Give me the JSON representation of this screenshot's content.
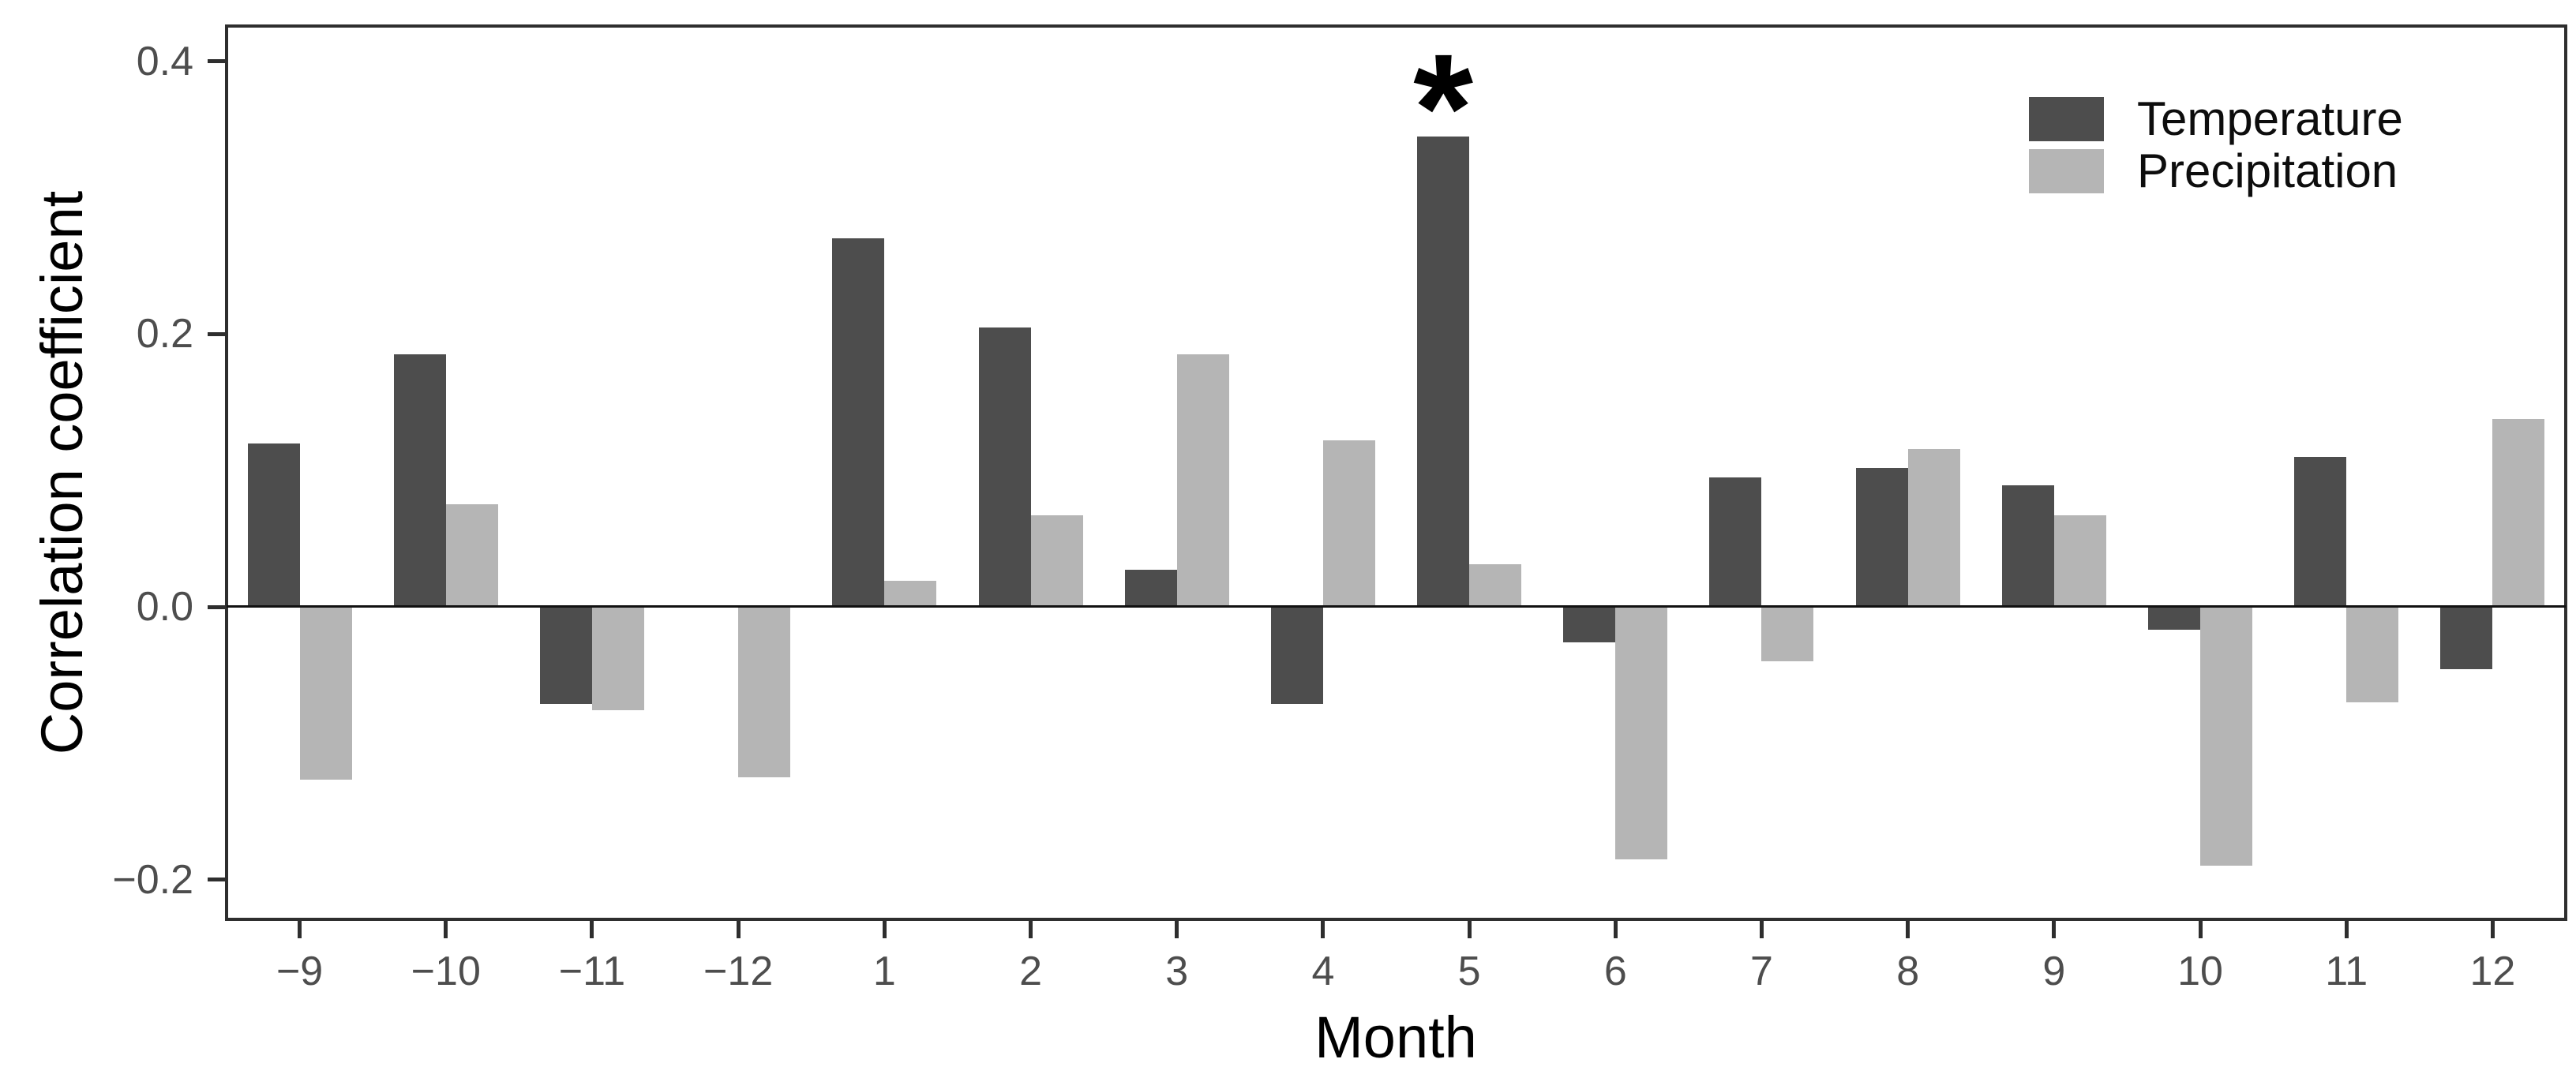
{
  "chart_data": {
    "type": "bar",
    "title": "",
    "xlabel": "Month",
    "ylabel": "Correlation coefficient",
    "categories": [
      -9,
      -10,
      -11,
      -12,
      1,
      2,
      3,
      4,
      5,
      6,
      7,
      8,
      9,
      10,
      11,
      12
    ],
    "x_tick_labels": [
      "−9",
      "−10",
      "−11",
      "−12",
      "1",
      "2",
      "3",
      "4",
      "5",
      "6",
      "7",
      "8",
      "9",
      "10",
      "11",
      "12"
    ],
    "series": [
      {
        "name": "Temperature",
        "color": "#4d4d4d",
        "values": [
          0.12,
          0.185,
          -0.071,
          0.0,
          0.27,
          0.205,
          0.027,
          -0.071,
          0.345,
          -0.026,
          0.095,
          0.102,
          0.089,
          -0.017,
          0.11,
          -0.046
        ]
      },
      {
        "name": "Precipitation",
        "color": "#b5b5b5",
        "values": [
          -0.127,
          0.075,
          -0.076,
          -0.125,
          0.019,
          0.067,
          0.185,
          0.122,
          0.031,
          -0.185,
          -0.04,
          0.116,
          0.067,
          -0.19,
          -0.07,
          0.138
        ]
      }
    ],
    "y_ticks": [
      0.4,
      0.2,
      0.0,
      -0.2
    ],
    "y_tick_labels": [
      "0.4",
      "0.2",
      "0.0",
      "−0.2"
    ],
    "ylim": [
      -0.229,
      0.426
    ],
    "grid": false,
    "zero_line": true,
    "legend_position": "top-right",
    "annotations": [
      {
        "text": "*",
        "series": "Temperature",
        "category": 5
      }
    ]
  }
}
